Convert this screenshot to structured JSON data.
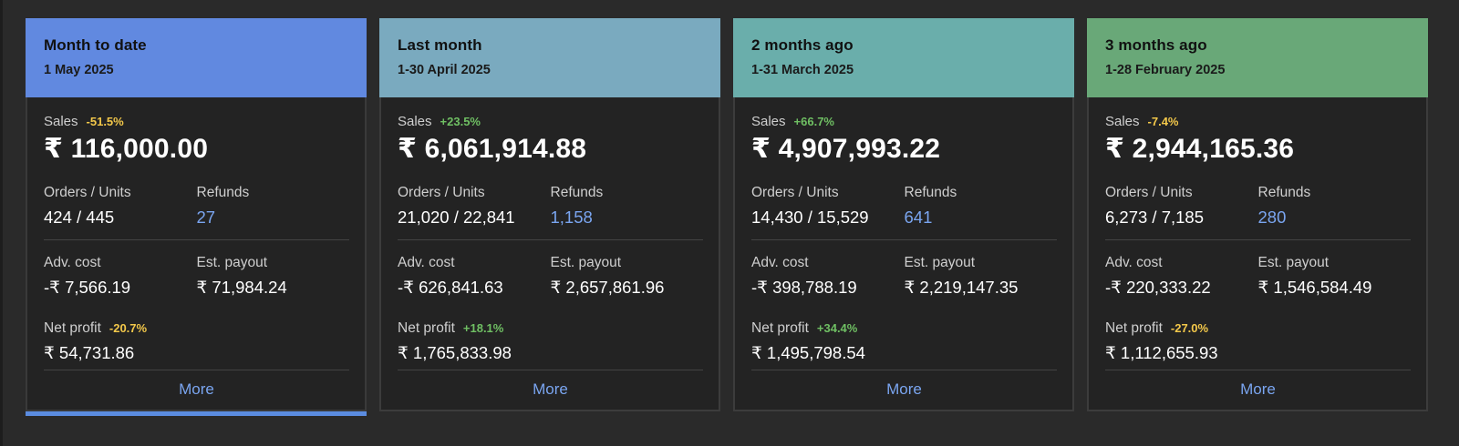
{
  "cards": [
    {
      "title": "Month to date",
      "date": "1 May 2025",
      "header_color": "#6189e0",
      "sales_label": "Sales",
      "sales_change": "-51.5%",
      "sales_value": "₹ 116,000.00",
      "orders_label": "Orders / Units",
      "orders_value": "424 / 445",
      "refunds_label": "Refunds",
      "refunds_value": "27",
      "adv_label": "Adv. cost",
      "adv_value": "-₹ 7,566.19",
      "payout_label": "Est. payout",
      "payout_value": "₹ 71,984.24",
      "net_label": "Net profit",
      "net_change": "-20.7%",
      "net_value": "₹ 54,731.86",
      "more_label": "More"
    },
    {
      "title": "Last month",
      "date": "1-30 April 2025",
      "header_color": "#7aaabf",
      "sales_label": "Sales",
      "sales_change": "+23.5%",
      "sales_value": "₹ 6,061,914.88",
      "orders_label": "Orders / Units",
      "orders_value": "21,020 / 22,841",
      "refunds_label": "Refunds",
      "refunds_value": "1,158",
      "adv_label": "Adv. cost",
      "adv_value": "-₹ 626,841.63",
      "payout_label": "Est. payout",
      "payout_value": "₹ 2,657,861.96",
      "net_label": "Net profit",
      "net_change": "+18.1%",
      "net_value": "₹ 1,765,833.98",
      "more_label": "More"
    },
    {
      "title": "2 months ago",
      "date": "1-31 March 2025",
      "header_color": "#6aaeab",
      "sales_label": "Sales",
      "sales_change": "+66.7%",
      "sales_value": "₹ 4,907,993.22",
      "orders_label": "Orders / Units",
      "orders_value": "14,430 / 15,529",
      "refunds_label": "Refunds",
      "refunds_value": "641",
      "adv_label": "Adv. cost",
      "adv_value": "-₹ 398,788.19",
      "payout_label": "Est. payout",
      "payout_value": "₹ 2,219,147.35",
      "net_label": "Net profit",
      "net_change": "+34.4%",
      "net_value": "₹ 1,495,798.54",
      "more_label": "More"
    },
    {
      "title": "3 months ago",
      "date": "1-28 February 2025",
      "header_color": "#69a878",
      "sales_label": "Sales",
      "sales_change": "-7.4%",
      "sales_value": "₹ 2,944,165.36",
      "orders_label": "Orders / Units",
      "orders_value": "6,273 / 7,185",
      "refunds_label": "Refunds",
      "refunds_value": "280",
      "adv_label": "Adv. cost",
      "adv_value": "-₹ 220,333.22",
      "payout_label": "Est. payout",
      "payout_value": "₹ 1,546,584.49",
      "net_label": "Net profit",
      "net_change": "-27.0%",
      "net_value": "₹ 1,112,655.93",
      "more_label": "More"
    }
  ],
  "colors": {
    "positive": "#6fbf63",
    "negative": "#f3c84a",
    "link": "#7aa5f0",
    "active_indicator": "#5b8ce0"
  }
}
